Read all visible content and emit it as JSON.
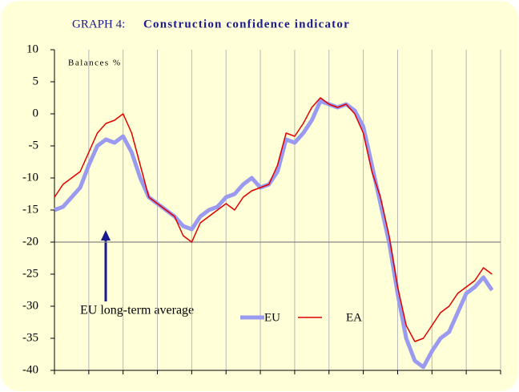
{
  "chart_data": {
    "type": "line",
    "title_label": "GRAPH 4:",
    "title": "Construction confidence indicator",
    "ylabel": "Balances %",
    "annotation": "EU long-term average",
    "reference_line": -20,
    "x": [
      0,
      3,
      6,
      9,
      12,
      15,
      18,
      21,
      24,
      27,
      30,
      33,
      36,
      39,
      42,
      45,
      48,
      51,
      54,
      57,
      60,
      63,
      66,
      69,
      72,
      75,
      78,
      81,
      84,
      87,
      90,
      93,
      96,
      99,
      102,
      105,
      108,
      111,
      114,
      117,
      120,
      123,
      126,
      129,
      132,
      135,
      138,
      141,
      144,
      147,
      150,
      153
    ],
    "xlim": [
      0,
      156
    ],
    "xticks": [
      0,
      12,
      24,
      36,
      48,
      60,
      72,
      84,
      96,
      108,
      120,
      132,
      144,
      156
    ],
    "ylim": [
      -40,
      10
    ],
    "yticks": [
      10,
      5,
      0,
      -5,
      -10,
      -15,
      -20,
      -25,
      -30,
      -35,
      -40
    ],
    "series": [
      {
        "name": "EU",
        "color": "#9a9af0",
        "values": [
          -15,
          -14.5,
          -13,
          -11.5,
          -8,
          -5,
          -4,
          -4.5,
          -3.5,
          -6,
          -10,
          -13,
          -14,
          -15,
          -16,
          -17.5,
          -18,
          -16,
          -15,
          -14.5,
          -13,
          -12.5,
          -11,
          -10,
          -11.5,
          -11,
          -9,
          -4,
          -4.5,
          -3,
          -1,
          2,
          1.5,
          1,
          1.5,
          0.5,
          -2,
          -8,
          -14,
          -20,
          -28,
          -35,
          -38.5,
          -39.5,
          -37,
          -35,
          -34,
          -31,
          -28,
          -27,
          -25.5,
          -27.5
        ]
      },
      {
        "name": "EA",
        "color": "#e00000",
        "values": [
          -13,
          -11,
          -10,
          -9,
          -6,
          -3,
          -1.5,
          -1,
          0,
          -3,
          -8,
          -13,
          -14,
          -15,
          -16,
          -19,
          -20,
          -17,
          -16,
          -15,
          -14,
          -15,
          -13,
          -12,
          -11.5,
          -11,
          -8,
          -3,
          -3.5,
          -1.5,
          1,
          2.5,
          1.5,
          1,
          1.5,
          0,
          -3,
          -9,
          -13,
          -19,
          -27,
          -33,
          -35.5,
          -35,
          -33,
          -31,
          -30,
          -28,
          -27,
          -26,
          -24,
          -25
        ]
      }
    ]
  }
}
